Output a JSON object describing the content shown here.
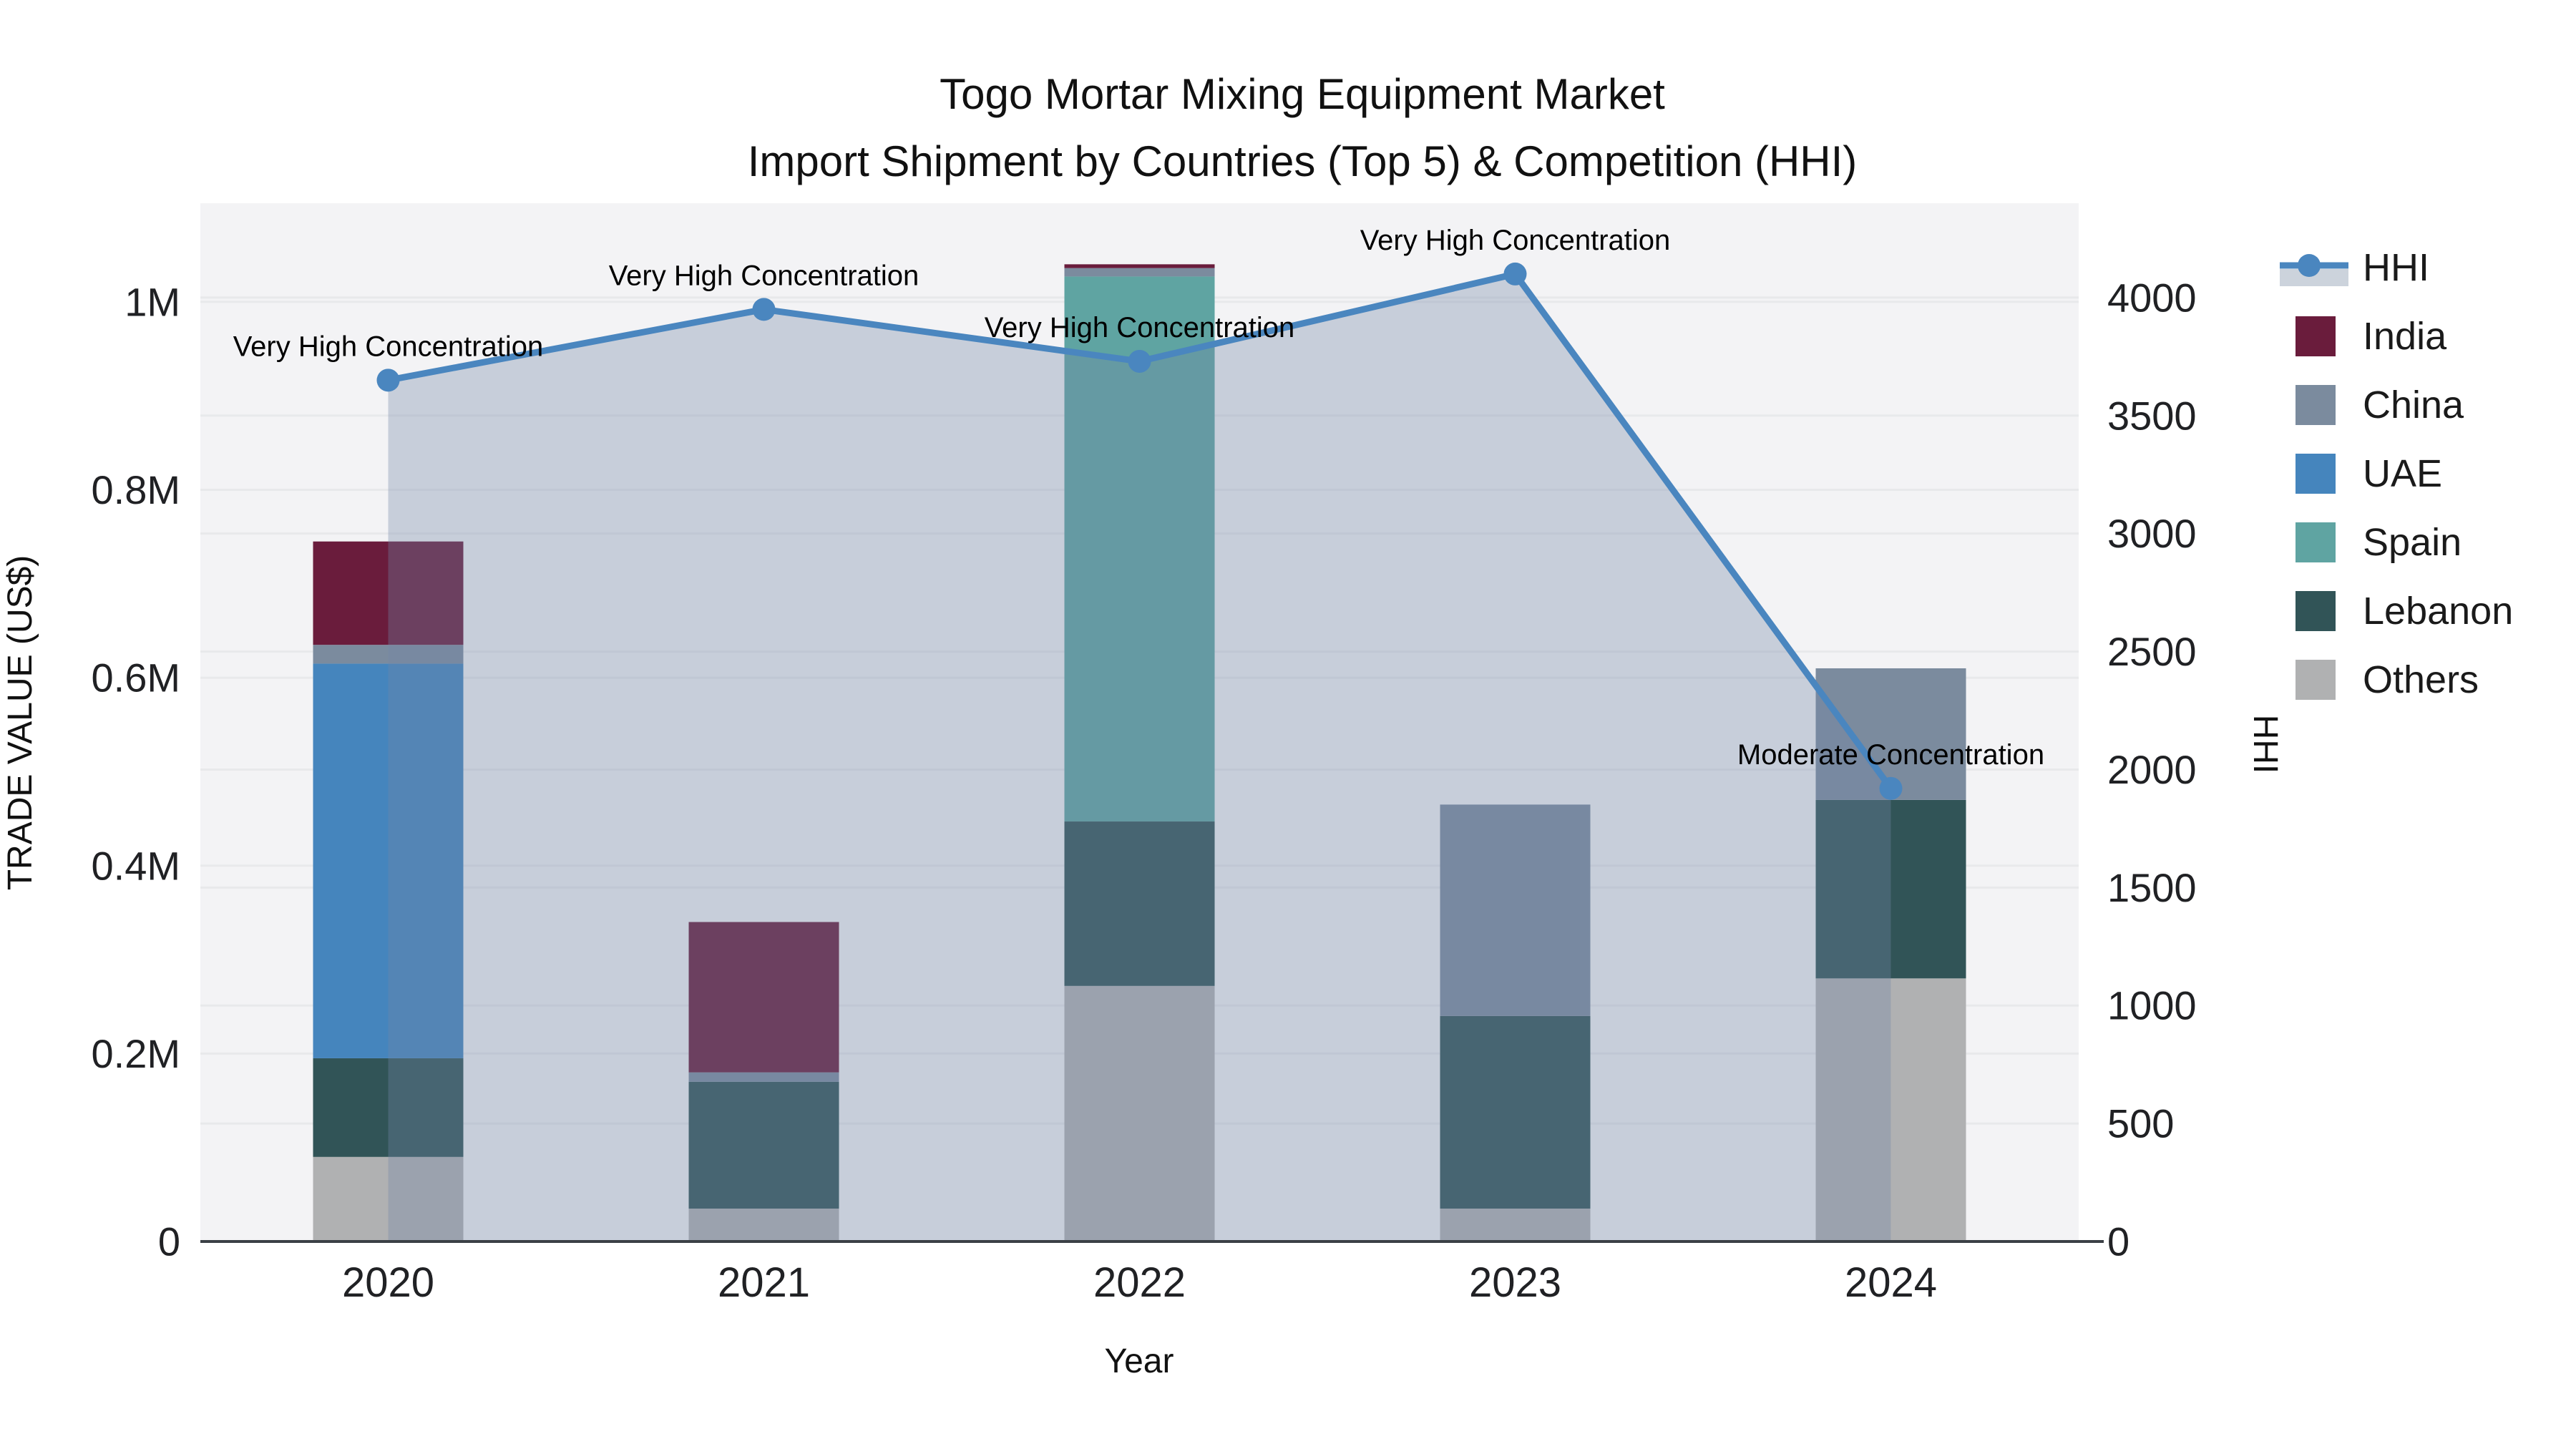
{
  "title": {
    "line1": "Togo Mortar Mixing Equipment Market",
    "line2": "Import Shipment by Countries (Top 5) & Competition (HHI)"
  },
  "chart_data": {
    "type": "combo: stacked-bar + line",
    "x": {
      "label": "Year",
      "categories": [
        "2020",
        "2021",
        "2022",
        "2023",
        "2024"
      ]
    },
    "y_left": {
      "label": "TRADE VALUE (US$)",
      "ticks": [
        0,
        200000,
        400000,
        600000,
        800000,
        1000000
      ],
      "tick_labels": [
        "0",
        "0.2M",
        "0.4M",
        "0.6M",
        "0.8M",
        "1M"
      ],
      "range": [
        0,
        1105000
      ],
      "grid": true
    },
    "y_right": {
      "label": "HHI",
      "ticks": [
        0,
        500,
        1000,
        1500,
        2000,
        2500,
        3000,
        3500,
        4000
      ],
      "tick_labels": [
        "0",
        "500",
        "1000",
        "1500",
        "2000",
        "2500",
        "3000",
        "3500",
        "4000"
      ],
      "range": [
        0,
        4400
      ],
      "grid": true
    },
    "bar_series": [
      {
        "name": "Others",
        "color": "#b0b1b2",
        "values": [
          90000,
          35000,
          272000,
          35000,
          280000
        ]
      },
      {
        "name": "Lebanon",
        "color": "#315457",
        "values": [
          105000,
          135000,
          175000,
          205000,
          190000
        ]
      },
      {
        "name": "Spain",
        "color": "#5fa4a2",
        "values": [
          0,
          0,
          580000,
          0,
          0
        ]
      },
      {
        "name": "UAE",
        "color": "#4585bd",
        "values": [
          420000,
          0,
          0,
          0,
          0
        ]
      },
      {
        "name": "China",
        "color": "#7b8b9e",
        "values": [
          20000,
          10000,
          9000,
          225000,
          140000
        ]
      },
      {
        "name": "India",
        "color": "#6a1c3c",
        "values": [
          110000,
          160000,
          4000,
          0,
          0
        ]
      }
    ],
    "line_series": {
      "name": "HHI",
      "color": "#4a86bf",
      "area_color": "rgba(114,136,166,0.34)",
      "values": [
        3650,
        3950,
        3730,
        4100,
        1920
      ]
    },
    "annotations": [
      {
        "year": "2020",
        "text": "Very High Concentration"
      },
      {
        "year": "2021",
        "text": "Very High Concentration"
      },
      {
        "year": "2022",
        "text": "Very High Concentration"
      },
      {
        "year": "2023",
        "text": "Very High Concentration"
      },
      {
        "year": "2024",
        "text": "Moderate Concentration"
      }
    ],
    "legend": {
      "items": [
        {
          "label": "HHI",
          "color": "#4a86bf",
          "type": "line",
          "band_color": "#ccd3dc"
        },
        {
          "label": "India",
          "color": "#6a1c3c",
          "type": "square"
        },
        {
          "label": "China",
          "color": "#7b8b9e",
          "type": "square"
        },
        {
          "label": "UAE",
          "color": "#4585bd",
          "type": "square"
        },
        {
          "label": "Spain",
          "color": "#5fa4a2",
          "type": "square"
        },
        {
          "label": "Lebanon",
          "color": "#315457",
          "type": "square"
        },
        {
          "label": "Others",
          "color": "#b0b1b2",
          "type": "square"
        }
      ]
    },
    "colors": {
      "plot_background": "#f3f3f5",
      "figure_background": "#ffffff",
      "axis_line": "#3b4046",
      "gridline": "rgba(40,50,60,0.05)"
    }
  }
}
